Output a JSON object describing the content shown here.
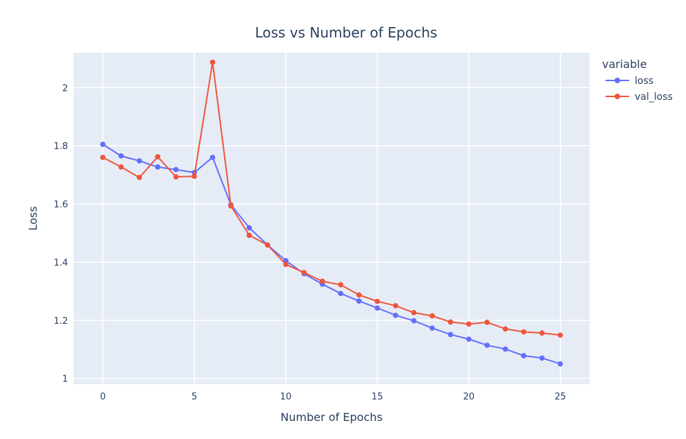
{
  "chart_data": {
    "type": "line",
    "title": "Loss vs Number of Epochs",
    "xlabel": "Number of Epochs",
    "ylabel": "Loss",
    "xlim": [
      -1.6,
      26.6
    ],
    "ylim": [
      0.98,
      2.12
    ],
    "xticks": [
      0,
      5,
      10,
      15,
      20,
      25
    ],
    "yticks": [
      1,
      1.2,
      1.4,
      1.6,
      1.8,
      2
    ],
    "grid": true,
    "plot_bgcolor": "#e5ecf6",
    "legend": {
      "title": "variable",
      "position": "top-right"
    },
    "x": [
      0,
      1,
      2,
      3,
      4,
      5,
      6,
      7,
      8,
      9,
      10,
      11,
      12,
      13,
      14,
      15,
      16,
      17,
      18,
      19,
      20,
      21,
      22,
      23,
      24,
      25
    ],
    "series": [
      {
        "name": "loss",
        "color": "#636efa",
        "values": [
          1.805,
          1.765,
          1.748,
          1.727,
          1.718,
          1.708,
          1.76,
          1.597,
          1.518,
          1.459,
          1.405,
          1.36,
          1.324,
          1.292,
          1.266,
          1.242,
          1.217,
          1.198,
          1.173,
          1.151,
          1.135,
          1.114,
          1.101,
          1.078,
          1.07,
          1.05
        ]
      },
      {
        "name": "val_loss",
        "color": "#ef553b",
        "values": [
          1.76,
          1.727,
          1.691,
          1.762,
          1.693,
          1.695,
          2.087,
          1.593,
          1.492,
          1.459,
          1.392,
          1.364,
          1.334,
          1.322,
          1.287,
          1.265,
          1.25,
          1.226,
          1.215,
          1.194,
          1.187,
          1.193,
          1.17,
          1.16,
          1.156,
          1.149
        ]
      }
    ]
  }
}
